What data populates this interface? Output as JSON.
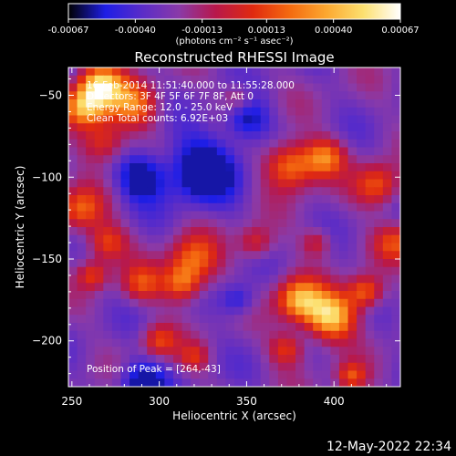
{
  "chart_data": {
    "type": "heatmap",
    "title": "Reconstructed RHESSI Image",
    "xlabel": "Heliocentric X (arcsec)",
    "ylabel": "Heliocentric Y (arcsec)",
    "xlim": [
      248,
      438
    ],
    "ylim": [
      -228,
      -33
    ],
    "x_ticks": [
      250,
      300,
      350,
      400
    ],
    "y_ticks": [
      -50,
      -100,
      -150,
      -200
    ],
    "colorbar": {
      "min": -0.00067,
      "max": 0.00067,
      "tick_values": [
        -0.00067,
        -0.0004,
        -0.00013,
        0.00013,
        0.0004,
        0.00067
      ],
      "tick_labels": [
        "-0.00067",
        "-0.00040",
        "-0.00013",
        "0.00013",
        "0.00040",
        "0.00067"
      ],
      "unit_label": "(photons cm⁻² s⁻¹ asec⁻²)",
      "colormap": [
        "#000000",
        "#1e1ee6",
        "#5a2cc8",
        "#8a3aa8",
        "#b8184a",
        "#e02a10",
        "#f46a10",
        "#fca830",
        "#fce070",
        "#ffffff"
      ]
    },
    "annotations": [
      "16-Feb-2014 11:51:40.000 to 11:55:28.000",
      "Detectors: 3F 4F 5F 6F 7F 8F, Att 0",
      "Energy Range: 12.0 - 25.0 keV",
      "Clean     Total counts: 6.92E+03"
    ],
    "peak_label": "Position of Peak = [264,-43]",
    "peak": {
      "x": 264,
      "y": -43
    },
    "sources": [
      {
        "x": 266,
        "y": -45,
        "sigma": 9,
        "amp": 1.0
      },
      {
        "x": 257,
        "y": -58,
        "sigma": 8,
        "amp": 0.75
      },
      {
        "x": 285,
        "y": -56,
        "sigma": 10,
        "amp": 0.6
      },
      {
        "x": 268,
        "y": -78,
        "sigma": 9,
        "amp": 0.5
      },
      {
        "x": 255,
        "y": -120,
        "sigma": 9,
        "amp": 0.55
      },
      {
        "x": 270,
        "y": -140,
        "sigma": 8,
        "amp": 0.5
      },
      {
        "x": 262,
        "y": -160,
        "sigma": 6,
        "amp": 0.45
      },
      {
        "x": 290,
        "y": -165,
        "sigma": 8,
        "amp": 0.45
      },
      {
        "x": 320,
        "y": -150,
        "sigma": 10,
        "amp": 0.55
      },
      {
        "x": 313,
        "y": -165,
        "sigma": 8,
        "amp": 0.6
      },
      {
        "x": 300,
        "y": -200,
        "sigma": 7,
        "amp": 0.45
      },
      {
        "x": 320,
        "y": -210,
        "sigma": 6,
        "amp": 0.35
      },
      {
        "x": 375,
        "y": -93,
        "sigma": 10,
        "amp": 0.7
      },
      {
        "x": 395,
        "y": -88,
        "sigma": 8,
        "amp": 0.6
      },
      {
        "x": 425,
        "y": -105,
        "sigma": 9,
        "amp": 0.55
      },
      {
        "x": 435,
        "y": -140,
        "sigma": 8,
        "amp": 0.45
      },
      {
        "x": 355,
        "y": -140,
        "sigma": 7,
        "amp": 0.4
      },
      {
        "x": 390,
        "y": -140,
        "sigma": 6,
        "amp": 0.35
      },
      {
        "x": 398,
        "y": -185,
        "sigma": 10,
        "amp": 0.95
      },
      {
        "x": 380,
        "y": -175,
        "sigma": 9,
        "amp": 0.8
      },
      {
        "x": 418,
        "y": -170,
        "sigma": 7,
        "amp": 0.6
      },
      {
        "x": 373,
        "y": -205,
        "sigma": 7,
        "amp": 0.45
      },
      {
        "x": 410,
        "y": -222,
        "sigma": 6,
        "amp": 0.5
      },
      {
        "x": 345,
        "y": -52,
        "sigma": 6,
        "amp": 0.3
      }
    ],
    "voids": [
      {
        "x": 325,
        "y": -95,
        "sigma": 14,
        "amp": 0.35
      },
      {
        "x": 290,
        "y": -100,
        "sigma": 10,
        "amp": 0.3
      },
      {
        "x": 350,
        "y": -65,
        "sigma": 9,
        "amp": 0.25
      },
      {
        "x": 290,
        "y": -225,
        "sigma": 9,
        "amp": 0.3
      },
      {
        "x": 345,
        "y": -175,
        "sigma": 7,
        "amp": 0.2
      }
    ]
  },
  "footer": {
    "timestamp": "12-May-2022 22:34"
  }
}
